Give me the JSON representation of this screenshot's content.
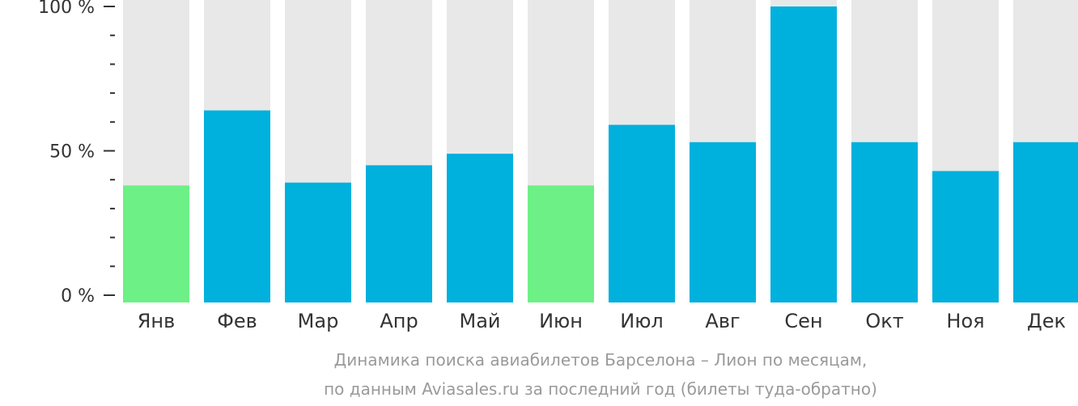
{
  "chart_data": {
    "type": "bar",
    "categories": [
      "Янв",
      "Фев",
      "Мар",
      "Апр",
      "Май",
      "Июн",
      "Июл",
      "Авг",
      "Сен",
      "Окт",
      "Ноя",
      "Дек"
    ],
    "series": [
      {
        "values": [
          38,
          64,
          39,
          45,
          49,
          38,
          59,
          53,
          100,
          53,
          43,
          53
        ]
      }
    ],
    "highlight": [
      true,
      false,
      false,
      false,
      false,
      true,
      false,
      false,
      false,
      false,
      false,
      false
    ],
    "ylim": [
      0,
      100
    ],
    "y_ticks": [
      {
        "value": 0,
        "label": "0 %"
      },
      {
        "value": 50,
        "label": "50 %"
      },
      {
        "value": 100,
        "label": "100 %"
      }
    ],
    "y_minor_tick_step": 10,
    "grid": false,
    "colors": {
      "bar": "#00b0dd",
      "bar_highlight": "#6df086",
      "track": "#e8e8e8",
      "axis": "#333333"
    }
  },
  "caption": {
    "line1": "Динамика поиска авиабилетов Барселона – Лион по месяцам,",
    "line2": "по данным Aviasales.ru за последний год (билеты туда-обратно)"
  }
}
